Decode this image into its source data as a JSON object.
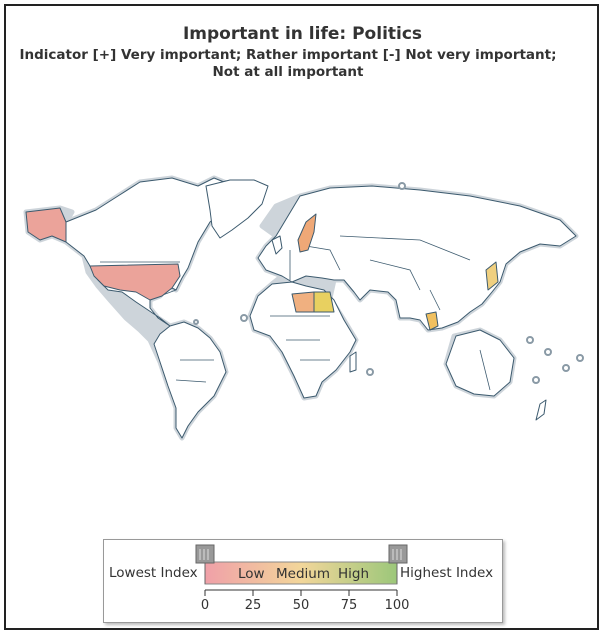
{
  "title": "Important in life: Politics",
  "subtitle_line1": "Indicator [+] Very important; Rather important [-] Not very important;",
  "subtitle_line2": "Not at all important",
  "colors": {
    "country_default": "#ffffff",
    "border": "#3c5a6e",
    "coast_halo": "#c8d0d6",
    "low": "#e88a8a",
    "medium": "#f0c060",
    "high": "#7fb35a",
    "highlight_usa": "#eba39a",
    "highlight_sweden": "#efa877",
    "highlight_libya": "#f0b080",
    "highlight_egypt": "#e8d060"
  },
  "highlighted_countries": [
    {
      "name": "Alaska (United States)",
      "level": "low"
    },
    {
      "name": "United States",
      "level": "low"
    },
    {
      "name": "Sweden",
      "level": "low-medium"
    },
    {
      "name": "Libya",
      "level": "low-medium"
    },
    {
      "name": "Egypt",
      "level": "medium"
    },
    {
      "name": "Thailand",
      "level": "medium"
    },
    {
      "name": "Japan",
      "level": "medium"
    }
  ],
  "legend": {
    "lowest_label": "Lowest Index",
    "highest_label": "Highest Index",
    "bar_low": "Low",
    "bar_medium": "Medium",
    "bar_high": "High",
    "ticks": [
      "0",
      "25",
      "50",
      "75",
      "100"
    ],
    "range": [
      0,
      100
    ]
  }
}
